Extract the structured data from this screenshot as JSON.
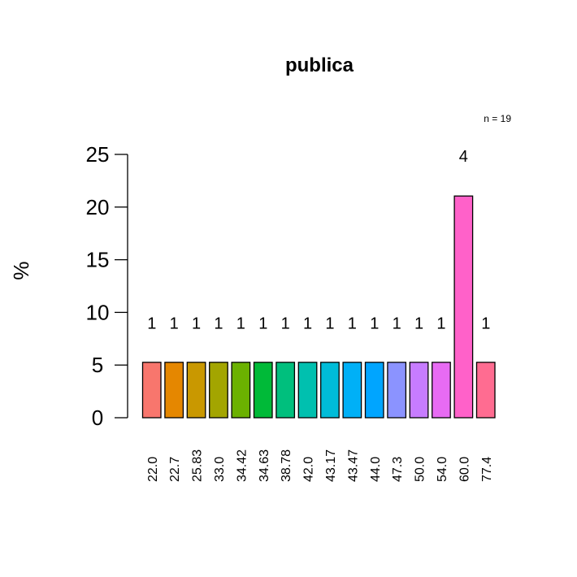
{
  "chart_data": {
    "type": "bar",
    "title": "publica",
    "ylabel": "%",
    "xlabel": "",
    "annotation": "n = 19",
    "ylim": [
      0,
      25
    ],
    "yticks": [
      "0",
      "5",
      "10",
      "15",
      "20",
      "25"
    ],
    "categories": [
      "22.0",
      "22.7",
      "25.83",
      "33.0",
      "34.42",
      "34.63",
      "38.78",
      "42.0",
      "43.17",
      "43.47",
      "44.0",
      "47.3",
      "50.0",
      "54.0",
      "60.0",
      "77.4"
    ],
    "values": [
      5.26,
      5.26,
      5.26,
      5.26,
      5.26,
      5.26,
      5.26,
      5.26,
      5.26,
      5.26,
      5.26,
      5.26,
      5.26,
      5.26,
      21.05,
      5.26
    ],
    "counts": [
      "1",
      "1",
      "1",
      "1",
      "1",
      "1",
      "1",
      "1",
      "1",
      "1",
      "1",
      "1",
      "1",
      "1",
      "4",
      "1"
    ],
    "colors": [
      "#F8766D",
      "#E58700",
      "#C99800",
      "#A3A500",
      "#6BB100",
      "#00BA38",
      "#00BF7D",
      "#00C0AF",
      "#00BCD8",
      "#00B0F6",
      "#00A5FF",
      "#8B93FF",
      "#C77CFF",
      "#E76BF3",
      "#FF61C9",
      "#FF6C91"
    ],
    "grid": false,
    "legend": "none"
  }
}
